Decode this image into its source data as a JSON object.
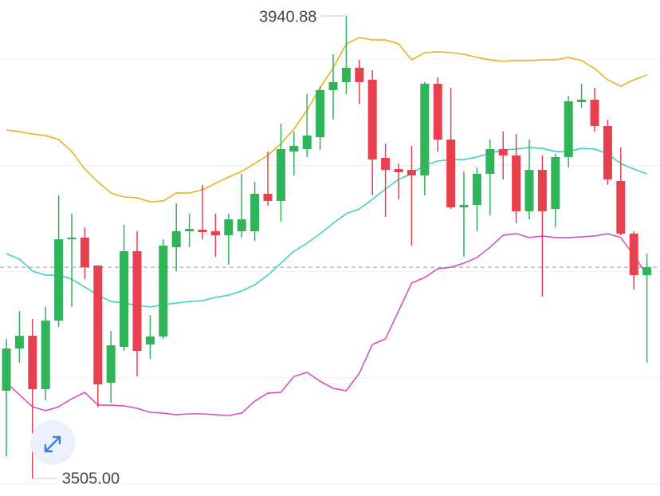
{
  "chart_data": {
    "type": "candlestick",
    "ylim": [
      3488.5,
      3955.9
    ],
    "gridlines": [
      3500,
      3600,
      3700,
      3800,
      3900
    ],
    "grid": true,
    "up_color": "#2fb45a",
    "down_color": "#e8404f",
    "reference_line": 3704.1,
    "open": [
      3587.7,
      3627.5,
      3639.5,
      3589.2,
      3653.8,
      3730.4,
      3732.0,
      3705.7,
      3595.2,
      3629.0,
      3719.2,
      3631.3,
      3638.8,
      3722.9,
      3738.0,
      3739.5,
      3738.0,
      3734.2,
      3738.0,
      3738.0,
      3773.3,
      3766.5,
      3813.1,
      3815.4,
      3826.6,
      3871.0,
      3878.5,
      3892.0,
      3880.7,
      3807.1,
      3796.6,
      3795.8,
      3790.6,
      3877.0,
      3824.4,
      3760.5,
      3762.8,
      3792.1,
      3815.4,
      3809.4,
      3756.8,
      3795.8,
      3759.0,
      3807.9,
      3859.7,
      3862.0,
      3837.2,
      3785.3,
      3735.7,
      3696.6
    ],
    "high": [
      3636.5,
      3662.8,
      3655.3,
      3666.6,
      3771.8,
      3754.5,
      3741.7,
      3705.7,
      3644.0,
      3744.0,
      3738.0,
      3659.1,
      3730.4,
      3764.3,
      3754.5,
      3781.6,
      3754.5,
      3754.5,
      3792.1,
      3784.6,
      3813.1,
      3839.4,
      3831.9,
      3867.2,
      3874.7,
      3904.8,
      3940.88,
      3899.5,
      3889.8,
      3820.6,
      3801.8,
      3818.4,
      3878.5,
      3883.0,
      3873.2,
      3794.3,
      3798.1,
      3824.4,
      3831.9,
      3829.6,
      3824.4,
      3809.4,
      3810.9,
      3865.7,
      3877.0,
      3873.2,
      3843.2,
      3816.9,
      3738.0,
      3716.9
    ],
    "low": [
      3526.0,
      3614.0,
      3505.0,
      3578.6,
      3647.8,
      3666.6,
      3692.9,
      3572.6,
      3576.4,
      3625.2,
      3601.2,
      3617.7,
      3636.5,
      3700.4,
      3722.9,
      3730.4,
      3713.9,
      3706.4,
      3732.0,
      3728.9,
      3762.0,
      3747.0,
      3790.6,
      3807.9,
      3814.6,
      3843.2,
      3867.2,
      3858.2,
      3771.8,
      3751.5,
      3768.0,
      3724.4,
      3771.8,
      3813.1,
      3759.0,
      3713.9,
      3738.0,
      3753.0,
      3786.8,
      3745.5,
      3749.2,
      3676.3,
      3741.7,
      3798.1,
      3854.4,
      3831.9,
      3781.6,
      3734.2,
      3683.1,
      3614.0
    ],
    "close": [
      3627.5,
      3639.5,
      3589.2,
      3653.8,
      3730.4,
      3732.0,
      3704.1,
      3593.7,
      3630.5,
      3719.2,
      3625.2,
      3638.8,
      3724.4,
      3738.0,
      3740.2,
      3737.2,
      3734.2,
      3749.2,
      3749.2,
      3773.3,
      3766.5,
      3815.4,
      3818.4,
      3828.1,
      3871.0,
      3878.5,
      3892.0,
      3878.5,
      3805.6,
      3795.8,
      3793.6,
      3790.6,
      3877.0,
      3824.4,
      3760.5,
      3762.8,
      3792.1,
      3815.4,
      3809.4,
      3756.8,
      3795.8,
      3756.8,
      3807.9,
      3860.5,
      3862.0,
      3837.2,
      3786.8,
      3735.7,
      3696.6,
      3704.1
    ],
    "series": [
      {
        "color": "#e6b422",
        "values": [
          3833.4,
          3831.9,
          3829.6,
          3828.1,
          3824.4,
          3813.1,
          3796.6,
          3784.6,
          3774.0,
          3770.3,
          3769.5,
          3765.8,
          3766.5,
          3774.0,
          3774.0,
          3777.0,
          3783.1,
          3789.1,
          3794.3,
          3801.8,
          3809.4,
          3820.6,
          3834.2,
          3852.2,
          3873.2,
          3892.0,
          3914.6,
          3920.6,
          3918.3,
          3918.3,
          3914.6,
          3899.5,
          3906.3,
          3907.1,
          3906.3,
          3904.8,
          3901.8,
          3899.5,
          3898.0,
          3898.8,
          3898.8,
          3899.5,
          3899.5,
          3901.8,
          3898.8,
          3891.3,
          3880.7,
          3874.7,
          3880.7,
          3885.3
        ]
      },
      {
        "color": "#3fd3bd",
        "values": [
          3716.9,
          3711.7,
          3700.4,
          3696.6,
          3696.6,
          3692.9,
          3685.4,
          3677.8,
          3671.8,
          3670.3,
          3668.1,
          3666.6,
          3668.8,
          3670.3,
          3671.8,
          3672.6,
          3675.6,
          3677.8,
          3681.6,
          3687.6,
          3696.6,
          3707.9,
          3719.2,
          3726.7,
          3735.7,
          3745.5,
          3754.5,
          3759.0,
          3768.0,
          3777.8,
          3786.8,
          3792.1,
          3800.3,
          3804.1,
          3805.6,
          3805.6,
          3807.9,
          3811.6,
          3814.6,
          3815.4,
          3816.9,
          3816.1,
          3813.1,
          3813.1,
          3816.1,
          3815.4,
          3810.9,
          3801.8,
          3796.6,
          3792.1
        ]
      },
      {
        "color": "#d84fc0",
        "values": [
          3595.2,
          3583.9,
          3572.6,
          3568.9,
          3572.6,
          3580.1,
          3586.2,
          3574.1,
          3574.1,
          3573.4,
          3571.1,
          3567.4,
          3566.6,
          3565.1,
          3565.9,
          3565.9,
          3565.1,
          3564.4,
          3566.6,
          3577.9,
          3585.4,
          3586.2,
          3601.2,
          3605.0,
          3596.7,
          3589.9,
          3587.7,
          3604.2,
          3631.3,
          3636.5,
          3662.8,
          3689.1,
          3694.4,
          3702.6,
          3704.1,
          3707.9,
          3713.2,
          3722.9,
          3734.2,
          3735.7,
          3732.0,
          3733.5,
          3732.0,
          3732.0,
          3732.7,
          3733.5,
          3735.7,
          3732.0,
          3715.4,
          3696.6
        ]
      }
    ],
    "annotations": [
      {
        "value": 3940.88,
        "label": "3940.88"
      },
      {
        "value": 3505.0,
        "label": "3505.00"
      }
    ]
  }
}
